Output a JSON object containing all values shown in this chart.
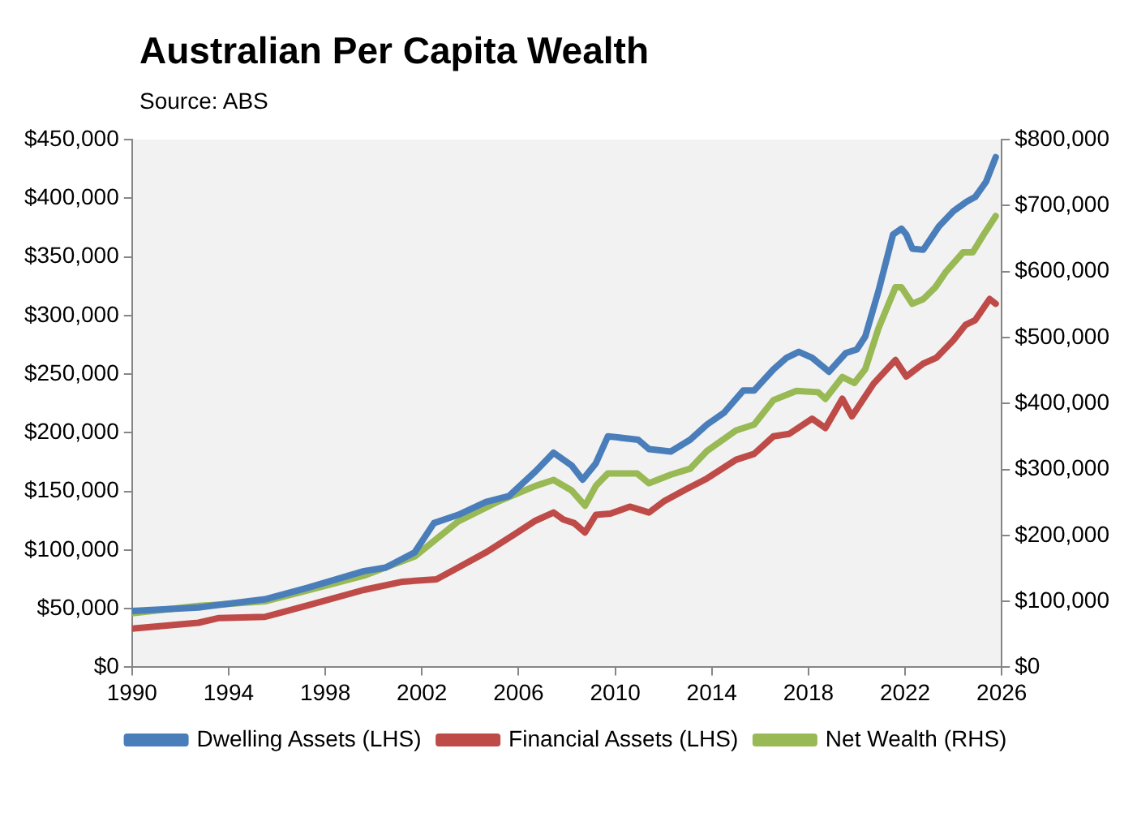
{
  "chart_data": {
    "type": "line",
    "title": "Australian Per Capita Wealth",
    "subtitle": "Source: ABS",
    "xlim": [
      1990,
      2026
    ],
    "xticks": [
      1990,
      1994,
      1998,
      2002,
      2006,
      2010,
      2014,
      2018,
      2022,
      2026
    ],
    "ylim": [
      0,
      450000
    ],
    "yticks": [
      {
        "value": 0,
        "label": "$0"
      },
      {
        "value": 50000,
        "label": "$50,000"
      },
      {
        "value": 100000,
        "label": "$100,000"
      },
      {
        "value": 150000,
        "label": "$150,000"
      },
      {
        "value": 200000,
        "label": "$200,000"
      },
      {
        "value": 250000,
        "label": "$250,000"
      },
      {
        "value": 300000,
        "label": "$300,000"
      },
      {
        "value": 350000,
        "label": "$350,000"
      },
      {
        "value": 400000,
        "label": "$400,000"
      },
      {
        "value": 450000,
        "label": "$450,000"
      }
    ],
    "y2lim": [
      0,
      800000
    ],
    "y2ticks": [
      {
        "value": 0,
        "label": "$0"
      },
      {
        "value": 100000,
        "label": "$100,000"
      },
      {
        "value": 200000,
        "label": "$200,000"
      },
      {
        "value": 300000,
        "label": "$300,000"
      },
      {
        "value": 400000,
        "label": "$400,000"
      },
      {
        "value": 500000,
        "label": "$500,000"
      },
      {
        "value": 600000,
        "label": "$600,000"
      },
      {
        "value": 700000,
        "label": "$700,000"
      },
      {
        "value": 800000,
        "label": "$800,000"
      }
    ],
    "grid": false,
    "legend": "bottom",
    "marker": "none",
    "line_style": "solid",
    "series": [
      {
        "name": "Dwelling Assets (LHS)",
        "color": "#4a7ebb",
        "x": [
          1990,
          1992.75,
          1995.5,
          1997.3,
          1999.6,
          2000.5,
          2001.7,
          2002.5,
          2003.5,
          2004.65,
          2005.6,
          2006.7,
          2007.45,
          2008.2,
          2008.65,
          2009.2,
          2009.7,
          2010.95,
          2011.4,
          2012.3,
          2013.1,
          2013.8,
          2014.5,
          2015.3,
          2015.75,
          2016.55,
          2017.1,
          2017.6,
          2018.15,
          2018.85,
          2019.55,
          2020,
          2020.35,
          2020.9,
          2021.5,
          2021.85,
          2022.05,
          2022.3,
          2022.75,
          2023.4,
          2024,
          2024.55,
          2024.9,
          2025.35,
          2025.75
        ],
        "values": [
          48000,
          51000,
          58000,
          68000,
          82000,
          85000,
          98000,
          123000,
          130000,
          141000,
          146000,
          167000,
          183000,
          172000,
          160000,
          174000,
          197000,
          194000,
          186000,
          184000,
          194000,
          207000,
          217000,
          236000,
          236000,
          254000,
          264000,
          269000,
          264000,
          252000,
          268000,
          271000,
          282000,
          321000,
          369000,
          374000,
          369000,
          357000,
          356000,
          376000,
          389000,
          397000,
          401000,
          414000,
          435000
        ]
      },
      {
        "name": "Financial Assets (LHS)",
        "color": "#be4b48",
        "x": [
          1990,
          1992.75,
          1993.6,
          1995.5,
          1997.3,
          1999.6,
          2001.2,
          2002.6,
          2003.5,
          2004.65,
          2005.8,
          2006.7,
          2007.45,
          2007.85,
          2008.3,
          2008.75,
          2009.2,
          2009.8,
          2010.6,
          2011.4,
          2012.05,
          2012.95,
          2013.8,
          2015,
          2015.75,
          2016.55,
          2017.2,
          2018.15,
          2018.7,
          2019.4,
          2019.8,
          2020.7,
          2021.6,
          2022.05,
          2022.75,
          2023.3,
          2024,
          2024.5,
          2024.9,
          2025.5,
          2025.75
        ],
        "values": [
          33000,
          38000,
          42000,
          43000,
          53000,
          66000,
          73000,
          75000,
          85000,
          98000,
          113000,
          125000,
          132000,
          126000,
          123000,
          115000,
          130000,
          131000,
          137000,
          132000,
          142000,
          152000,
          161000,
          177000,
          182000,
          197000,
          199000,
          212000,
          204000,
          229000,
          214000,
          242000,
          262000,
          248000,
          259000,
          264000,
          279000,
          292000,
          296000,
          314000,
          310000
        ]
      },
      {
        "name": "Net Wealth (RHS)",
        "color": "#98b954",
        "axis": "y2",
        "x": [
          1990,
          1992.75,
          1995.5,
          1997.3,
          1999.6,
          2001.7,
          2003.5,
          2005.2,
          2006.7,
          2007.45,
          2008.2,
          2008.75,
          2009.2,
          2009.7,
          2010.9,
          2011.4,
          2012.3,
          2013.1,
          2013.8,
          2015,
          2015.75,
          2016.55,
          2017.5,
          2018.4,
          2018.7,
          2019.4,
          2019.9,
          2020.35,
          2020.9,
          2021.6,
          2021.85,
          2022.3,
          2022.75,
          2023.25,
          2023.7,
          2024.4,
          2024.8,
          2025.25,
          2025.75
        ],
        "values": [
          82000,
          93000,
          100000,
          117000,
          139000,
          168000,
          221000,
          252000,
          275000,
          284000,
          268000,
          245000,
          275000,
          294000,
          294000,
          279000,
          292000,
          301000,
          328000,
          359000,
          368000,
          405000,
          419000,
          417000,
          407000,
          440000,
          431000,
          452000,
          514000,
          576000,
          576000,
          551000,
          558000,
          576000,
          600000,
          629000,
          629000,
          656000,
          684000
        ]
      }
    ]
  }
}
